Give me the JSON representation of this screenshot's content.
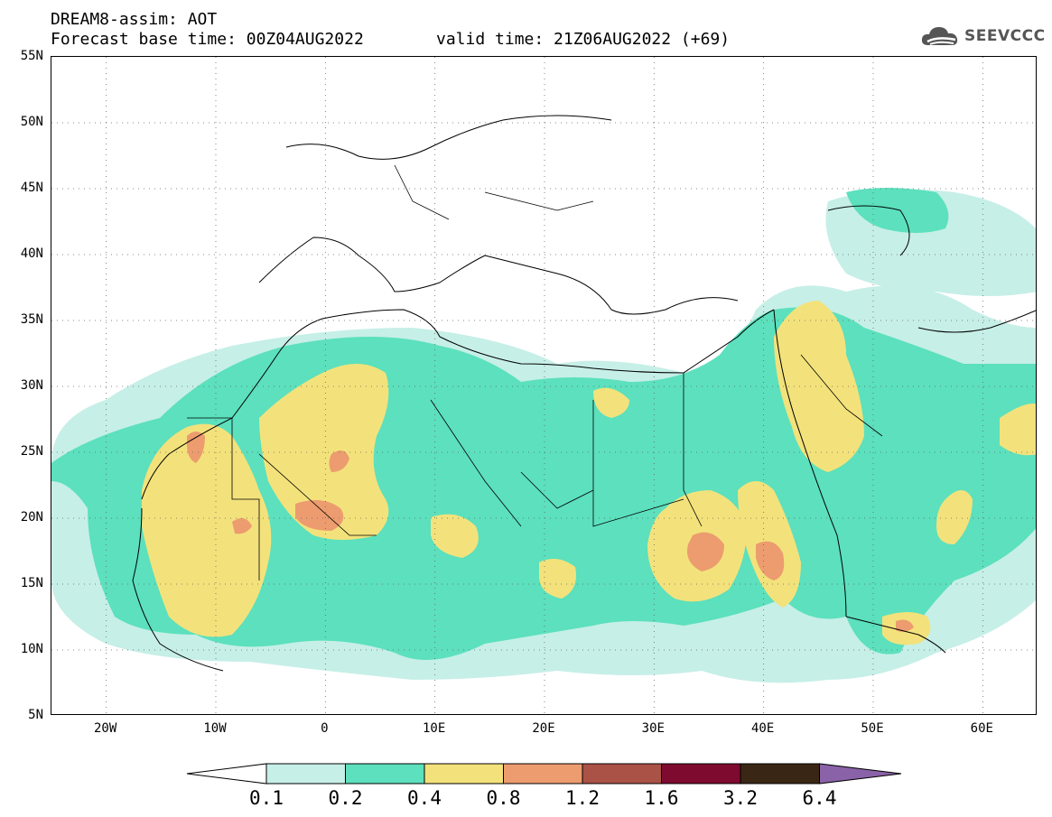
{
  "header": {
    "title": "DREAM8-assim: AOT",
    "base_time": "Forecast base time: 00Z04AUG2022",
    "valid_time": "valid time: 21Z06AUG2022 (+69)"
  },
  "logo": {
    "text": "SEEVCCC",
    "icon": "cloud-logo-icon"
  },
  "map": {
    "projection": "lat-lon",
    "lat_range": [
      5,
      55
    ],
    "lon_range": [
      -25,
      65
    ],
    "lat_labels": [
      "55N",
      "50N",
      "45N",
      "40N",
      "35N",
      "30N",
      "25N",
      "20N",
      "15N",
      "10N",
      "5N"
    ],
    "lon_labels": [
      "20W",
      "10W",
      "0",
      "10E",
      "20E",
      "30E",
      "40E",
      "50E",
      "60E"
    ],
    "grid": "dotted"
  },
  "colorbar": {
    "labels": [
      "0.1",
      "0.2",
      "0.4",
      "0.8",
      "1.2",
      "1.6",
      "3.2",
      "6.4"
    ],
    "colors": [
      "#ffffff",
      "#c6efe7",
      "#5ce0bd",
      "#f3e27b",
      "#ec9c6f",
      "#ab5246",
      "#7e0a2f",
      "#3a2614",
      "#8a62a8"
    ]
  }
}
